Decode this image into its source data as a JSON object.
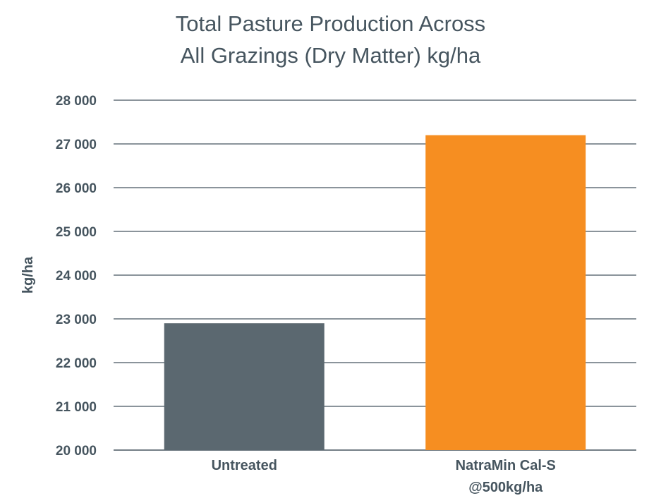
{
  "chart_data": {
    "type": "bar",
    "title_lines": [
      "Total Pasture Production Across",
      "All Grazings (Dry Matter) kg/ha"
    ],
    "ylabel": "kg/ha",
    "xlabel": "",
    "categories": [
      [
        "Untreated"
      ],
      [
        "NatraMin Cal-S",
        "@500kg/ha"
      ]
    ],
    "values": [
      22900,
      27200
    ],
    "bar_colors": [
      "#5b6870",
      "#f68e21"
    ],
    "ylim": [
      20000,
      28000
    ],
    "yticks": [
      20000,
      21000,
      22000,
      23000,
      24000,
      25000,
      26000,
      27000,
      28000
    ],
    "ytick_labels": [
      "20 000",
      "21 000",
      "22 000",
      "23 000",
      "24 000",
      "25 000",
      "26 000",
      "27 000",
      "28 000"
    ],
    "grid": true,
    "legend": "none",
    "colors": {
      "text": "#46555f",
      "grid": "#46555f"
    }
  }
}
